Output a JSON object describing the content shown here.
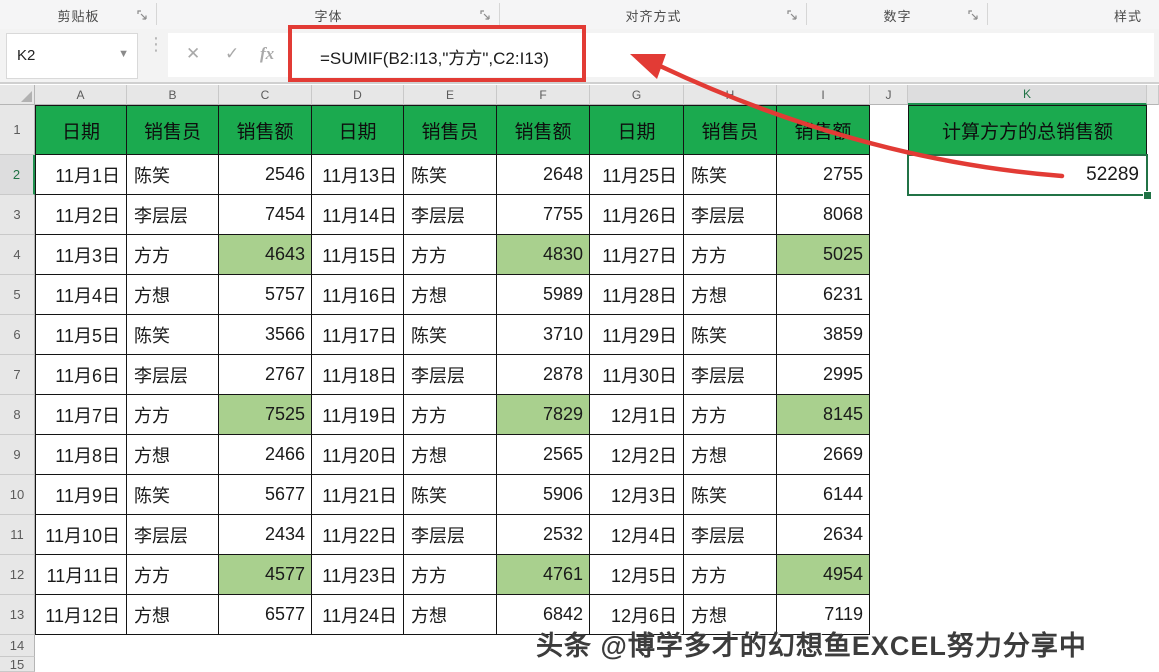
{
  "ribbon": {
    "groups": [
      {
        "label": "剪贴板",
        "has_launcher": true
      },
      {
        "label": "字体",
        "has_launcher": true
      },
      {
        "label": "对齐方式",
        "has_launcher": true
      },
      {
        "label": "数字",
        "has_launcher": true
      },
      {
        "label": "样式",
        "has_launcher": false
      }
    ]
  },
  "formula_bar": {
    "name_box_value": "K2",
    "cancel_label": "✕",
    "enter_label": "✓",
    "fx_label": "fx",
    "formula": "=SUMIF(B2:I13,\"方方\",C2:I13)"
  },
  "grid": {
    "column_letters": [
      "A",
      "B",
      "C",
      "D",
      "E",
      "F",
      "G",
      "H",
      "I",
      "J",
      "K"
    ],
    "row_numbers": [
      "1",
      "2",
      "3",
      "4",
      "5",
      "6",
      "7",
      "8",
      "9",
      "10",
      "11",
      "12",
      "13",
      "14",
      "15"
    ],
    "header_row": [
      "日期",
      "销售员",
      "销售额",
      "日期",
      "销售员",
      "销售额",
      "日期",
      "销售员",
      "销售额"
    ],
    "k_header": "计算方方的总销售额",
    "selected_cell": {
      "ref": "K2",
      "value": "52289"
    },
    "highlight_name": "方方",
    "rows": [
      [
        "11月1日",
        "陈笑",
        "2546",
        "11月13日",
        "陈笑",
        "2648",
        "11月25日",
        "陈笑",
        "2755"
      ],
      [
        "11月2日",
        "李层层",
        "7454",
        "11月14日",
        "李层层",
        "7755",
        "11月26日",
        "李层层",
        "8068"
      ],
      [
        "11月3日",
        "方方",
        "4643",
        "11月15日",
        "方方",
        "4830",
        "11月27日",
        "方方",
        "5025"
      ],
      [
        "11月4日",
        "方想",
        "5757",
        "11月16日",
        "方想",
        "5989",
        "11月28日",
        "方想",
        "6231"
      ],
      [
        "11月5日",
        "陈笑",
        "3566",
        "11月17日",
        "陈笑",
        "3710",
        "11月29日",
        "陈笑",
        "3859"
      ],
      [
        "11月6日",
        "李层层",
        "2767",
        "11月18日",
        "李层层",
        "2878",
        "11月30日",
        "李层层",
        "2995"
      ],
      [
        "11月7日",
        "方方",
        "7525",
        "11月19日",
        "方方",
        "7829",
        "12月1日",
        "方方",
        "8145"
      ],
      [
        "11月8日",
        "方想",
        "2466",
        "11月20日",
        "方想",
        "2565",
        "12月2日",
        "方想",
        "2669"
      ],
      [
        "11月9日",
        "陈笑",
        "5677",
        "11月21日",
        "陈笑",
        "5906",
        "12月3日",
        "陈笑",
        "6144"
      ],
      [
        "11月10日",
        "李层层",
        "2434",
        "11月22日",
        "李层层",
        "2532",
        "12月4日",
        "李层层",
        "2634"
      ],
      [
        "11月11日",
        "方方",
        "4577",
        "11月23日",
        "方方",
        "4761",
        "12月5日",
        "方方",
        "4954"
      ],
      [
        "11月12日",
        "方想",
        "6577",
        "11月24日",
        "方想",
        "6842",
        "12月6日",
        "方想",
        "7119"
      ]
    ]
  },
  "watermark": "头条 @博学多才的幻想鱼EXCEL努力分享中",
  "colors": {
    "header_green": "#1baa4f",
    "highlight_green": "#a9d08e",
    "selection_green": "#217346",
    "annotation_red": "#e23b35",
    "border_black": "#141414"
  }
}
